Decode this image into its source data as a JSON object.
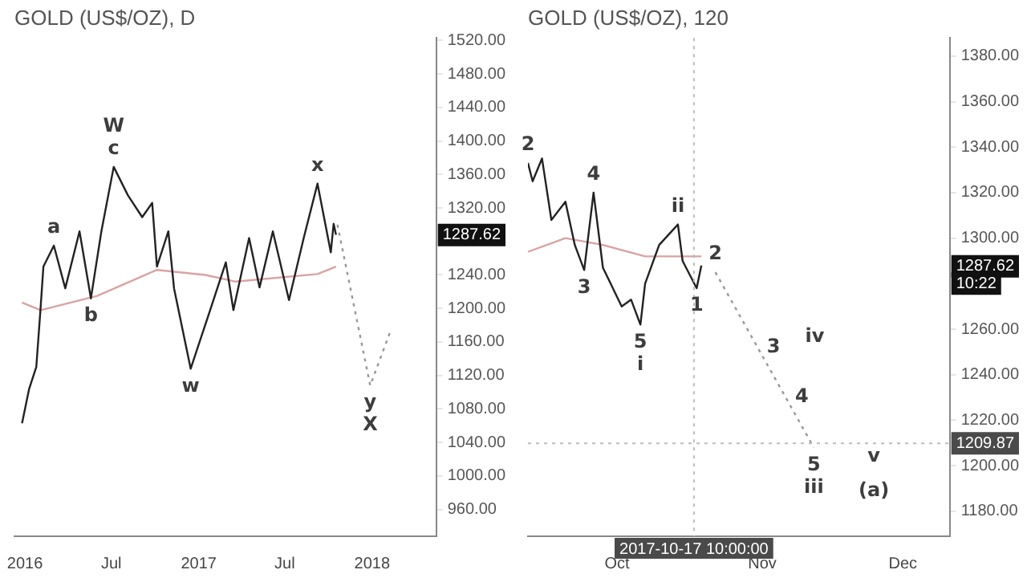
{
  "chart_data": [
    {
      "type": "line",
      "title": "GOLD (US$/OZ), D",
      "marker": "none",
      "x": [
        "2015-12-26",
        "2016-01-10",
        "2016-01-25",
        "2016-02-03",
        "2016-02-09",
        "2016-03-02",
        "2016-03-26",
        "2016-04-25",
        "2016-05-19",
        "2016-06-10",
        "2016-07-06",
        "2016-08-05",
        "2016-09-04",
        "2016-09-25",
        "2016-10-05",
        "2016-10-29",
        "2016-11-10",
        "2016-12-15",
        "2017-01-25",
        "2017-02-27",
        "2017-03-15",
        "2017-04-17",
        "2017-05-09",
        "2017-06-06",
        "2017-07-10",
        "2017-08-10",
        "2017-09-08",
        "2017-10-06",
        "2017-10-12",
        "2017-10-17"
      ],
      "series": [
        {
          "color": "#222222",
          "values": [
            1063,
            1104,
            1130,
            1200,
            1250,
            1275,
            1224,
            1292,
            1212,
            1292,
            1369,
            1335,
            1309,
            1326,
            1250,
            1292,
            1224,
            1128,
            1198,
            1255,
            1198,
            1284,
            1225,
            1292,
            1210,
            1284,
            1349,
            1267,
            1301,
            1288
          ]
        },
        {
          "color": "#d9a3a3",
          "x": [
            "2015-12-26",
            "2016-02-03",
            "2016-06-01",
            "2016-10-05",
            "2017-01-15",
            "2017-03-20",
            "2017-09-08",
            "2017-10-17"
          ],
          "values": [
            1207,
            1198,
            1215,
            1246,
            1240,
            1232,
            1241,
            1250
          ]
        },
        {
          "color": "#999999",
          "line_style": "dotted",
          "x": [
            "2017-10-20",
            "2017-12-28",
            "2018-02-10"
          ],
          "values": [
            1300,
            1108,
            1175
          ]
        }
      ],
      "xlim": [
        "2015-12-10",
        "2018-05-16"
      ],
      "xticks": [
        {
          "value": "2016-01-01",
          "label": "2016"
        },
        {
          "value": "2016-07-01",
          "label": "Jul"
        },
        {
          "value": "2017-01-01",
          "label": "2017"
        },
        {
          "value": "2017-07-01",
          "label": "Jul"
        },
        {
          "value": "2018-01-01",
          "label": "2018"
        }
      ],
      "ylim": [
        928,
        1523
      ],
      "yticks": [
        {
          "value": 960,
          "label": "960.00"
        },
        {
          "value": 1000,
          "label": "1000.00"
        },
        {
          "value": 1040,
          "label": "1040.00"
        },
        {
          "value": 1080,
          "label": "1080.00"
        },
        {
          "value": 1120,
          "label": "1120.00"
        },
        {
          "value": 1160,
          "label": "1160.00"
        },
        {
          "value": 1200,
          "label": "1200.00"
        },
        {
          "value": 1240,
          "label": "1240.00"
        },
        {
          "value": 1320,
          "label": "1320.00"
        },
        {
          "value": 1360,
          "label": "1360.00"
        },
        {
          "value": 1400,
          "label": "1400.00"
        },
        {
          "value": 1440,
          "label": "1440.00"
        },
        {
          "value": 1480,
          "label": "1480.00"
        },
        {
          "value": 1520,
          "label": "1520.00"
        }
      ],
      "annotations": [
        {
          "text": "W",
          "x": "2016-07-06",
          "y": 1369
        },
        {
          "text": "c",
          "x": "2016-07-06",
          "y": 1369
        },
        {
          "text": "a",
          "x": "2016-03-02",
          "y": 1275
        },
        {
          "text": "b",
          "x": "2016-05-19",
          "y": 1212
        },
        {
          "text": "w",
          "x": "2016-12-15",
          "y": 1128
        },
        {
          "text": "x",
          "x": "2017-09-08",
          "y": 1349
        },
        {
          "text": "y",
          "x": "2017-12-28",
          "y": 1108
        },
        {
          "text": "X",
          "x": "2017-12-28",
          "y": 1108
        },
        {
          "text": "1287.62",
          "y": 1287.62
        }
      ]
    },
    {
      "type": "line",
      "title": "GOLD (US$/OZ), 120",
      "marker": "none",
      "x": [
        "2017-09-12",
        "2017-09-13",
        "2017-09-15",
        "2017-09-17",
        "2017-09-20",
        "2017-09-22",
        "2017-09-24",
        "2017-09-26",
        "2017-09-28",
        "2017-10-02",
        "2017-10-04",
        "2017-10-06",
        "2017-10-07",
        "2017-10-10",
        "2017-10-14",
        "2017-10-15",
        "2017-10-18",
        "2017-10-19"
      ],
      "series": [
        {
          "color": "#222222",
          "values": [
            1333,
            1325,
            1335,
            1308,
            1316,
            1297,
            1286,
            1320,
            1287,
            1270,
            1273,
            1262,
            1280,
            1297,
            1306,
            1290,
            1278,
            1288
          ]
        },
        {
          "color": "#d9a3a3",
          "x": [
            "2017-09-12",
            "2017-09-20",
            "2017-09-28",
            "2017-10-07",
            "2017-10-19"
          ],
          "values": [
            1294,
            1300,
            1297,
            1292,
            1292
          ]
        },
        {
          "color": "#999999",
          "line_style": "dotted",
          "x": [
            "2017-10-22",
            "2017-10-31",
            "2017-11-06",
            "2017-11-12"
          ],
          "values": [
            1285,
            1252,
            1230,
            1208
          ]
        }
      ],
      "xlim": [
        "2017-09-12",
        "2017-12-11"
      ],
      "xticks": [
        {
          "value": "2017-10-01",
          "label": "Oct"
        },
        {
          "value": "2017-11-01",
          "label": "Nov"
        },
        {
          "value": "2017-12-01",
          "label": "Dec"
        }
      ],
      "ylim": [
        1169,
        1388
      ],
      "yticks": [
        {
          "value": 1180,
          "label": "1180.00"
        },
        {
          "value": 1200,
          "label": "1200.00"
        },
        {
          "value": 1220,
          "label": "1220.00"
        },
        {
          "value": 1240,
          "label": "1240.00"
        },
        {
          "value": 1260,
          "label": "1260.00"
        },
        {
          "value": 1300,
          "label": "1300.00"
        },
        {
          "value": 1320,
          "label": "1320.00"
        },
        {
          "value": 1340,
          "label": "1340.00"
        },
        {
          "value": 1360,
          "label": "1360.00"
        },
        {
          "value": 1380,
          "label": "1380.00"
        }
      ],
      "ref_lines": [
        {
          "axis": "x",
          "value": "2017-10-17T10:00",
          "label": "2017-10-17 10:00:00",
          "color": "#bbbbbb",
          "line_style": "dotted"
        },
        {
          "axis": "y",
          "value": 1209.87,
          "label": "1209.87",
          "color": "#bbbbbb",
          "line_style": "dotted"
        }
      ],
      "annotations": [
        {
          "text": "2",
          "x": "2017-09-12",
          "y": 1333
        },
        {
          "text": "4",
          "x": "2017-09-26",
          "y": 1320
        },
        {
          "text": "3",
          "x": "2017-09-24",
          "y": 1286
        },
        {
          "text": "5",
          "x": "2017-10-06",
          "y": 1262
        },
        {
          "text": "i",
          "x": "2017-10-06",
          "y": 1262
        },
        {
          "text": "ii",
          "x": "2017-10-14",
          "y": 1306
        },
        {
          "text": "2",
          "x": "2017-10-22",
          "y": 1285
        },
        {
          "text": "1",
          "x": "2017-10-18",
          "y": 1278
        },
        {
          "text": "3",
          "x": "2017-10-31",
          "y": 1252
        },
        {
          "text": "4",
          "x": "2017-11-06",
          "y": 1230
        },
        {
          "text": "5",
          "x": "2017-11-12",
          "y": 1208
        },
        {
          "text": "iii",
          "x": "2017-11-12",
          "y": 1208
        },
        "iv",
        "v",
        "(a)",
        {
          "text": "1287.62",
          "y": 1287.62
        },
        {
          "text": "10:22",
          "y": 1280
        }
      ]
    }
  ]
}
